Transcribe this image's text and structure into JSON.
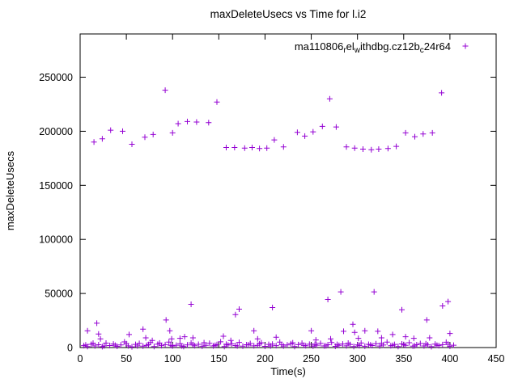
{
  "chart_data": {
    "type": "scatter",
    "title": "maxDeleteUsecs vs Time for l.i2",
    "xlabel": "Time(s)",
    "ylabel": "maxDeleteUsecs",
    "xlim": [
      0,
      450
    ],
    "ylim": [
      0,
      290000
    ],
    "xticks": [
      0,
      50,
      100,
      150,
      200,
      250,
      300,
      350,
      400,
      450
    ],
    "yticks": [
      0,
      50000,
      100000,
      150000,
      200000,
      250000
    ],
    "grid": false,
    "legend_position": "top-right-inside",
    "marker": "plus",
    "marker_color": "#9400D3",
    "series": [
      {
        "name": "ma110806_rel_withdbg.cz12b_c24r64",
        "legend_segments": [
          {
            "text": "ma110806"
          },
          {
            "text": "r",
            "sub": true
          },
          {
            "text": "el"
          },
          {
            "text": "w",
            "sub": true
          },
          {
            "text": "ithdbg.cz12b"
          },
          {
            "text": "c",
            "sub": true
          },
          {
            "text": "24r64"
          }
        ],
        "points": [
          [
            15,
            190000
          ],
          [
            24,
            193000
          ],
          [
            33,
            201000
          ],
          [
            46,
            200000
          ],
          [
            56,
            188000
          ],
          [
            70,
            194500
          ],
          [
            79,
            197000
          ],
          [
            92,
            238000
          ],
          [
            100,
            198500
          ],
          [
            106,
            207000
          ],
          [
            116,
            209000
          ],
          [
            126,
            208500
          ],
          [
            139,
            208000
          ],
          [
            148,
            227000
          ],
          [
            158,
            185000
          ],
          [
            167,
            185000
          ],
          [
            178,
            184500
          ],
          [
            186,
            185000
          ],
          [
            194,
            184000
          ],
          [
            202,
            184500
          ],
          [
            210,
            192000
          ],
          [
            220,
            185500
          ],
          [
            235,
            199000
          ],
          [
            243,
            195500
          ],
          [
            252,
            199500
          ],
          [
            262,
            204500
          ],
          [
            270,
            230000
          ],
          [
            277,
            204000
          ],
          [
            288,
            185500
          ],
          [
            297,
            184500
          ],
          [
            306,
            183500
          ],
          [
            315,
            183000
          ],
          [
            323,
            183500
          ],
          [
            333,
            184000
          ],
          [
            342,
            186000
          ],
          [
            352,
            198500
          ],
          [
            362,
            195000
          ],
          [
            371,
            197500
          ],
          [
            381,
            198500
          ],
          [
            391,
            235500
          ],
          [
            8,
            15500
          ],
          [
            18,
            22500
          ],
          [
            20,
            12500
          ],
          [
            22,
            8000
          ],
          [
            53,
            12000
          ],
          [
            68,
            17000
          ],
          [
            71,
            9000
          ],
          [
            78,
            6500
          ],
          [
            93,
            25500
          ],
          [
            97,
            15500
          ],
          [
            99,
            8000
          ],
          [
            108,
            8500
          ],
          [
            113,
            10000
          ],
          [
            120,
            40000
          ],
          [
            122,
            9000
          ],
          [
            155,
            10500
          ],
          [
            163,
            6500
          ],
          [
            168,
            30500
          ],
          [
            172,
            35500
          ],
          [
            188,
            15500
          ],
          [
            192,
            8000
          ],
          [
            208,
            37000
          ],
          [
            212,
            9500
          ],
          [
            250,
            15500
          ],
          [
            255,
            7000
          ],
          [
            268,
            44500
          ],
          [
            271,
            8000
          ],
          [
            282,
            51500
          ],
          [
            285,
            15000
          ],
          [
            295,
            21500
          ],
          [
            297,
            14000
          ],
          [
            301,
            8500
          ],
          [
            308,
            15500
          ],
          [
            318,
            51500
          ],
          [
            322,
            15000
          ],
          [
            326,
            9000
          ],
          [
            338,
            12000
          ],
          [
            348,
            35000
          ],
          [
            352,
            10000
          ],
          [
            361,
            8500
          ],
          [
            375,
            25500
          ],
          [
            378,
            9000
          ],
          [
            392,
            38500
          ],
          [
            398,
            42500
          ],
          [
            400,
            13000
          ],
          [
            4,
            1800
          ],
          [
            8,
            900
          ],
          [
            12,
            3000
          ],
          [
            16,
            1500
          ],
          [
            20,
            2600
          ],
          [
            24,
            800
          ],
          [
            28,
            4100
          ],
          [
            32,
            1900
          ],
          [
            36,
            3300
          ],
          [
            40,
            1100
          ],
          [
            44,
            2400
          ],
          [
            48,
            5200
          ],
          [
            52,
            1600
          ],
          [
            56,
            700
          ],
          [
            60,
            2900
          ],
          [
            64,
            3800
          ],
          [
            68,
            1300
          ],
          [
            72,
            2100
          ],
          [
            76,
            4600
          ],
          [
            80,
            1000
          ],
          [
            84,
            3100
          ],
          [
            88,
            1800
          ],
          [
            92,
            2700
          ],
          [
            96,
            5000
          ],
          [
            100,
            1400
          ],
          [
            104,
            2200
          ],
          [
            108,
            3600
          ],
          [
            112,
            900
          ],
          [
            116,
            2500
          ],
          [
            120,
            4300
          ],
          [
            124,
            1700
          ],
          [
            128,
            3000
          ],
          [
            132,
            1200
          ],
          [
            136,
            2000
          ],
          [
            140,
            3900
          ],
          [
            144,
            1500
          ],
          [
            148,
            2800
          ],
          [
            152,
            5300
          ],
          [
            156,
            1000
          ],
          [
            160,
            2300
          ],
          [
            164,
            3400
          ],
          [
            168,
            1900
          ],
          [
            172,
            4800
          ],
          [
            176,
            1300
          ],
          [
            180,
            2600
          ],
          [
            184,
            3700
          ],
          [
            188,
            1600
          ],
          [
            192,
            2100
          ],
          [
            196,
            4400
          ],
          [
            200,
            1100
          ],
          [
            204,
            2900
          ],
          [
            208,
            3200
          ],
          [
            212,
            1800
          ],
          [
            216,
            5100
          ],
          [
            220,
            1400
          ],
          [
            224,
            2400
          ],
          [
            228,
            3500
          ],
          [
            232,
            1000
          ],
          [
            236,
            2700
          ],
          [
            240,
            4000
          ],
          [
            244,
            1700
          ],
          [
            248,
            3100
          ],
          [
            252,
            1300
          ],
          [
            256,
            2200
          ],
          [
            260,
            3800
          ],
          [
            264,
            1500
          ],
          [
            268,
            2600
          ],
          [
            272,
            4700
          ],
          [
            276,
            1100
          ],
          [
            280,
            2000
          ],
          [
            284,
            3300
          ],
          [
            288,
            1600
          ],
          [
            292,
            2800
          ],
          [
            296,
            900
          ],
          [
            300,
            2500
          ],
          [
            304,
            4200
          ],
          [
            308,
            1200
          ],
          [
            312,
            3000
          ],
          [
            316,
            1900
          ],
          [
            320,
            3600
          ],
          [
            324,
            1400
          ],
          [
            328,
            2300
          ],
          [
            332,
            5000
          ],
          [
            336,
            1700
          ],
          [
            340,
            2900
          ],
          [
            344,
            1000
          ],
          [
            348,
            3400
          ],
          [
            352,
            2100
          ],
          [
            356,
            4500
          ],
          [
            360,
            1300
          ],
          [
            364,
            2600
          ],
          [
            368,
            3700
          ],
          [
            372,
            1500
          ],
          [
            376,
            2400
          ],
          [
            380,
            800
          ],
          [
            384,
            3200
          ],
          [
            388,
            1800
          ],
          [
            392,
            2700
          ],
          [
            396,
            4900
          ],
          [
            400,
            1200
          ],
          [
            404,
            2200
          ],
          [
            6,
            2500
          ],
          [
            14,
            4000
          ],
          [
            26,
            1500
          ],
          [
            38,
            2200
          ],
          [
            50,
            3500
          ],
          [
            62,
            1500
          ],
          [
            74,
            2800
          ],
          [
            86,
            4200
          ],
          [
            98,
            2000
          ],
          [
            110,
            1500
          ],
          [
            122,
            2800
          ],
          [
            134,
            4500
          ],
          [
            146,
            2000
          ],
          [
            158,
            3100
          ],
          [
            170,
            1500
          ],
          [
            182,
            2400
          ],
          [
            194,
            3600
          ],
          [
            206,
            1500
          ],
          [
            218,
            2700
          ],
          [
            230,
            4400
          ],
          [
            242,
            2000
          ],
          [
            254,
            3000
          ],
          [
            266,
            1600
          ],
          [
            278,
            2900
          ],
          [
            290,
            4100
          ],
          [
            302,
            1800
          ],
          [
            314,
            2500
          ],
          [
            326,
            3900
          ],
          [
            338,
            2000
          ],
          [
            350,
            2800
          ],
          [
            362,
            1600
          ],
          [
            374,
            3500
          ],
          [
            386,
            2200
          ],
          [
            398,
            3000
          ]
        ]
      }
    ]
  }
}
